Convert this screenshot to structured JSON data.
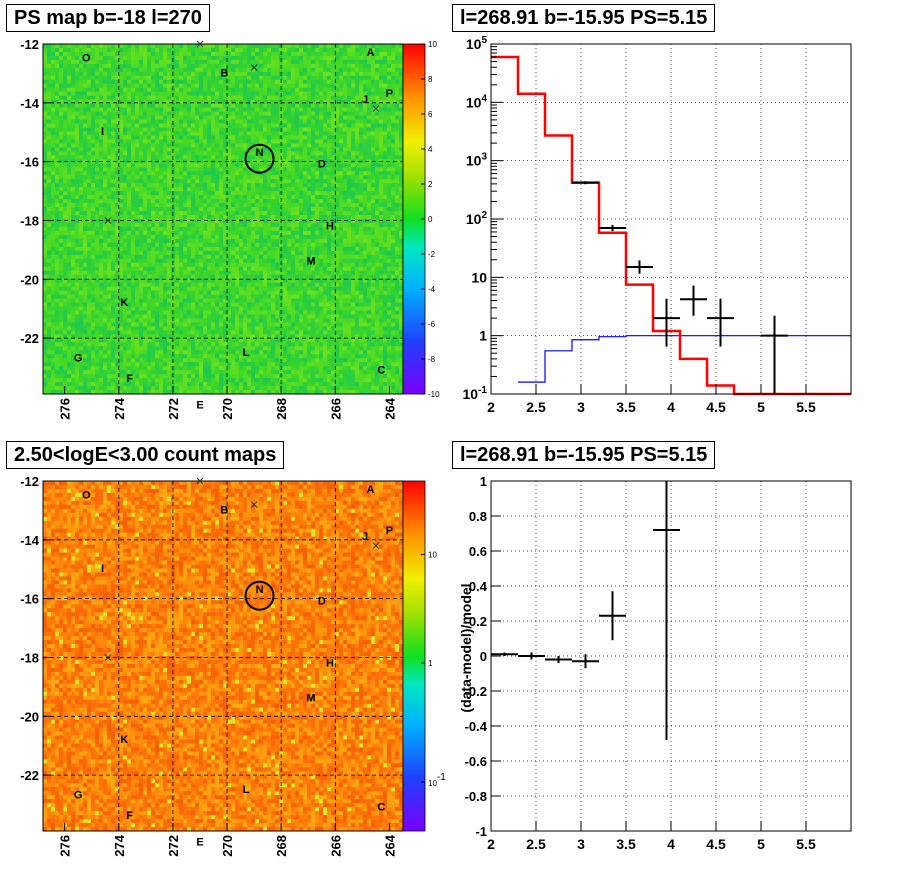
{
  "panels": {
    "ps_map_title": "PS map b=-18 l=270",
    "spectrum_title": "l=268.91 b=-15.95 PS=5.15",
    "count_map_title": "2.50<logE<3.00 count maps",
    "residual_title": "l=268.91 b=-15.95 PS=5.15"
  },
  "map_axes": {
    "y_ticks": [
      "-12",
      "-14",
      "-16",
      "-18",
      "-20",
      "-22"
    ],
    "x_ticks": [
      "276",
      "274",
      "272",
      "270",
      "268",
      "266",
      "264"
    ]
  },
  "source_labels": [
    "O",
    "A",
    "B",
    "J",
    "P",
    "I",
    "N",
    "D",
    "H",
    "M",
    "K",
    "L",
    "G",
    "C",
    "F",
    "E"
  ],
  "colors": {
    "model_histogram": "#ff0000",
    "background_histogram": "#0000ff",
    "data_points": "#000000",
    "ps_map_fill": "#33dd22",
    "count_map_fill": "#ff8800"
  },
  "chart_data": [
    {
      "type": "heatmap",
      "title": "PS map b=-18 l=270",
      "xlabel": "",
      "ylabel": "",
      "xlim": [
        276.8,
        263.5
      ],
      "ylim": [
        -23.9,
        -12
      ],
      "colorbar": {
        "range": [
          -10,
          10
        ],
        "ticks": [
          "10",
          "8",
          "6",
          "4",
          "2",
          "0",
          "-2",
          "-4",
          "-6",
          "-8",
          "-10"
        ]
      },
      "marked_source": {
        "label": "N",
        "l": 268.91,
        "b": -15.95,
        "value": 5.15
      },
      "typical_value": 2,
      "grid": true
    },
    {
      "type": "line",
      "title": "l=268.91 b=-15.95 PS=5.15",
      "xlabel": "",
      "ylabel": "",
      "xlim": [
        2,
        6
      ],
      "ylim": [
        0.1,
        100000
      ],
      "yscale": "log",
      "x_ticks": [
        "2",
        "2.5",
        "3",
        "3.5",
        "4",
        "4.5",
        "5",
        "5.5"
      ],
      "y_ticks": [
        "10^-1",
        "1",
        "10",
        "10^2",
        "10^3",
        "10^4",
        "10^5"
      ],
      "series": [
        {
          "edges": [
            2.0,
            2.3,
            2.6,
            2.9,
            3.2,
            3.5,
            3.8,
            4.1,
            4.4,
            4.7,
            5.0,
            6.0
          ],
          "values": [
            60000,
            14000,
            2700,
            420,
            58,
            7.5,
            1.2,
            0.4,
            0.14,
            0.1,
            0.1
          ],
          "color": "#ff0000"
        },
        {
          "edges": [
            2.3,
            2.6,
            2.9,
            3.2,
            3.5,
            3.8,
            4.1,
            4.4,
            4.7,
            5.0,
            6.0
          ],
          "values": [
            0.16,
            0.55,
            0.85,
            0.96,
            1.0,
            1.0,
            1.0,
            1.0,
            1.0,
            1.0
          ],
          "color": "#0000ff"
        },
        {
          "points": [
            {
              "x": 3.05,
              "y": 420,
              "xerr": 0.15,
              "ylo": 395,
              "yhi": 445
            },
            {
              "x": 3.35,
              "y": 70,
              "xerr": 0.15,
              "ylo": 62,
              "yhi": 79
            },
            {
              "x": 3.65,
              "y": 15,
              "xerr": 0.15,
              "ylo": 11.5,
              "yhi": 19.5
            },
            {
              "x": 3.95,
              "y": 2,
              "xerr": 0.15,
              "ylo": 0.65,
              "yhi": 4.3
            },
            {
              "x": 4.25,
              "y": 4.2,
              "xerr": 0.15,
              "ylo": 2.2,
              "yhi": 7.2
            },
            {
              "x": 4.55,
              "y": 2,
              "xerr": 0.15,
              "ylo": 0.65,
              "yhi": 4.3
            },
            {
              "x": 5.15,
              "y": 1,
              "xerr": 0.15,
              "ylo": 0.1,
              "yhi": 2.2
            }
          ]
        }
      ]
    },
    {
      "type": "heatmap",
      "title": "2.50<logE<3.00 count maps",
      "xlabel": "",
      "ylabel": "",
      "xlim": [
        276.8,
        263.5
      ],
      "ylim": [
        -23.9,
        -12
      ],
      "colorbar": {
        "scale": "log",
        "ticks": [
          "10",
          "1",
          "10^-1"
        ]
      },
      "grid": true
    },
    {
      "type": "scatter",
      "title": "l=268.91 b=-15.95 PS=5.15",
      "xlabel": "",
      "ylabel": "(data-model)/model",
      "xlim": [
        2,
        6
      ],
      "ylim": [
        -1,
        1
      ],
      "x_ticks": [
        "2",
        "2.5",
        "3",
        "3.5",
        "4",
        "4.5",
        "5",
        "5.5"
      ],
      "y_ticks": [
        "1",
        "0.8",
        "0.6",
        "0.4",
        "0.2",
        "0",
        "-0.2",
        "-0.4",
        "-0.6",
        "-0.8",
        "-1"
      ],
      "points": [
        {
          "x": 2.15,
          "y": 0.01,
          "xerr": 0.15,
          "yerr": 0.01
        },
        {
          "x": 2.45,
          "y": 0.0,
          "xerr": 0.15,
          "yerr": 0.02
        },
        {
          "x": 2.75,
          "y": -0.02,
          "xerr": 0.15,
          "yerr": 0.02
        },
        {
          "x": 3.05,
          "y": -0.03,
          "xerr": 0.15,
          "yerr": 0.04
        },
        {
          "x": 3.35,
          "y": 0.23,
          "xerr": 0.15,
          "yerr": 0.14
        },
        {
          "x": 3.95,
          "y": 0.72,
          "xerr": 0.15,
          "ylo": -0.48,
          "yhi": 1.0
        }
      ],
      "grid": true
    }
  ]
}
